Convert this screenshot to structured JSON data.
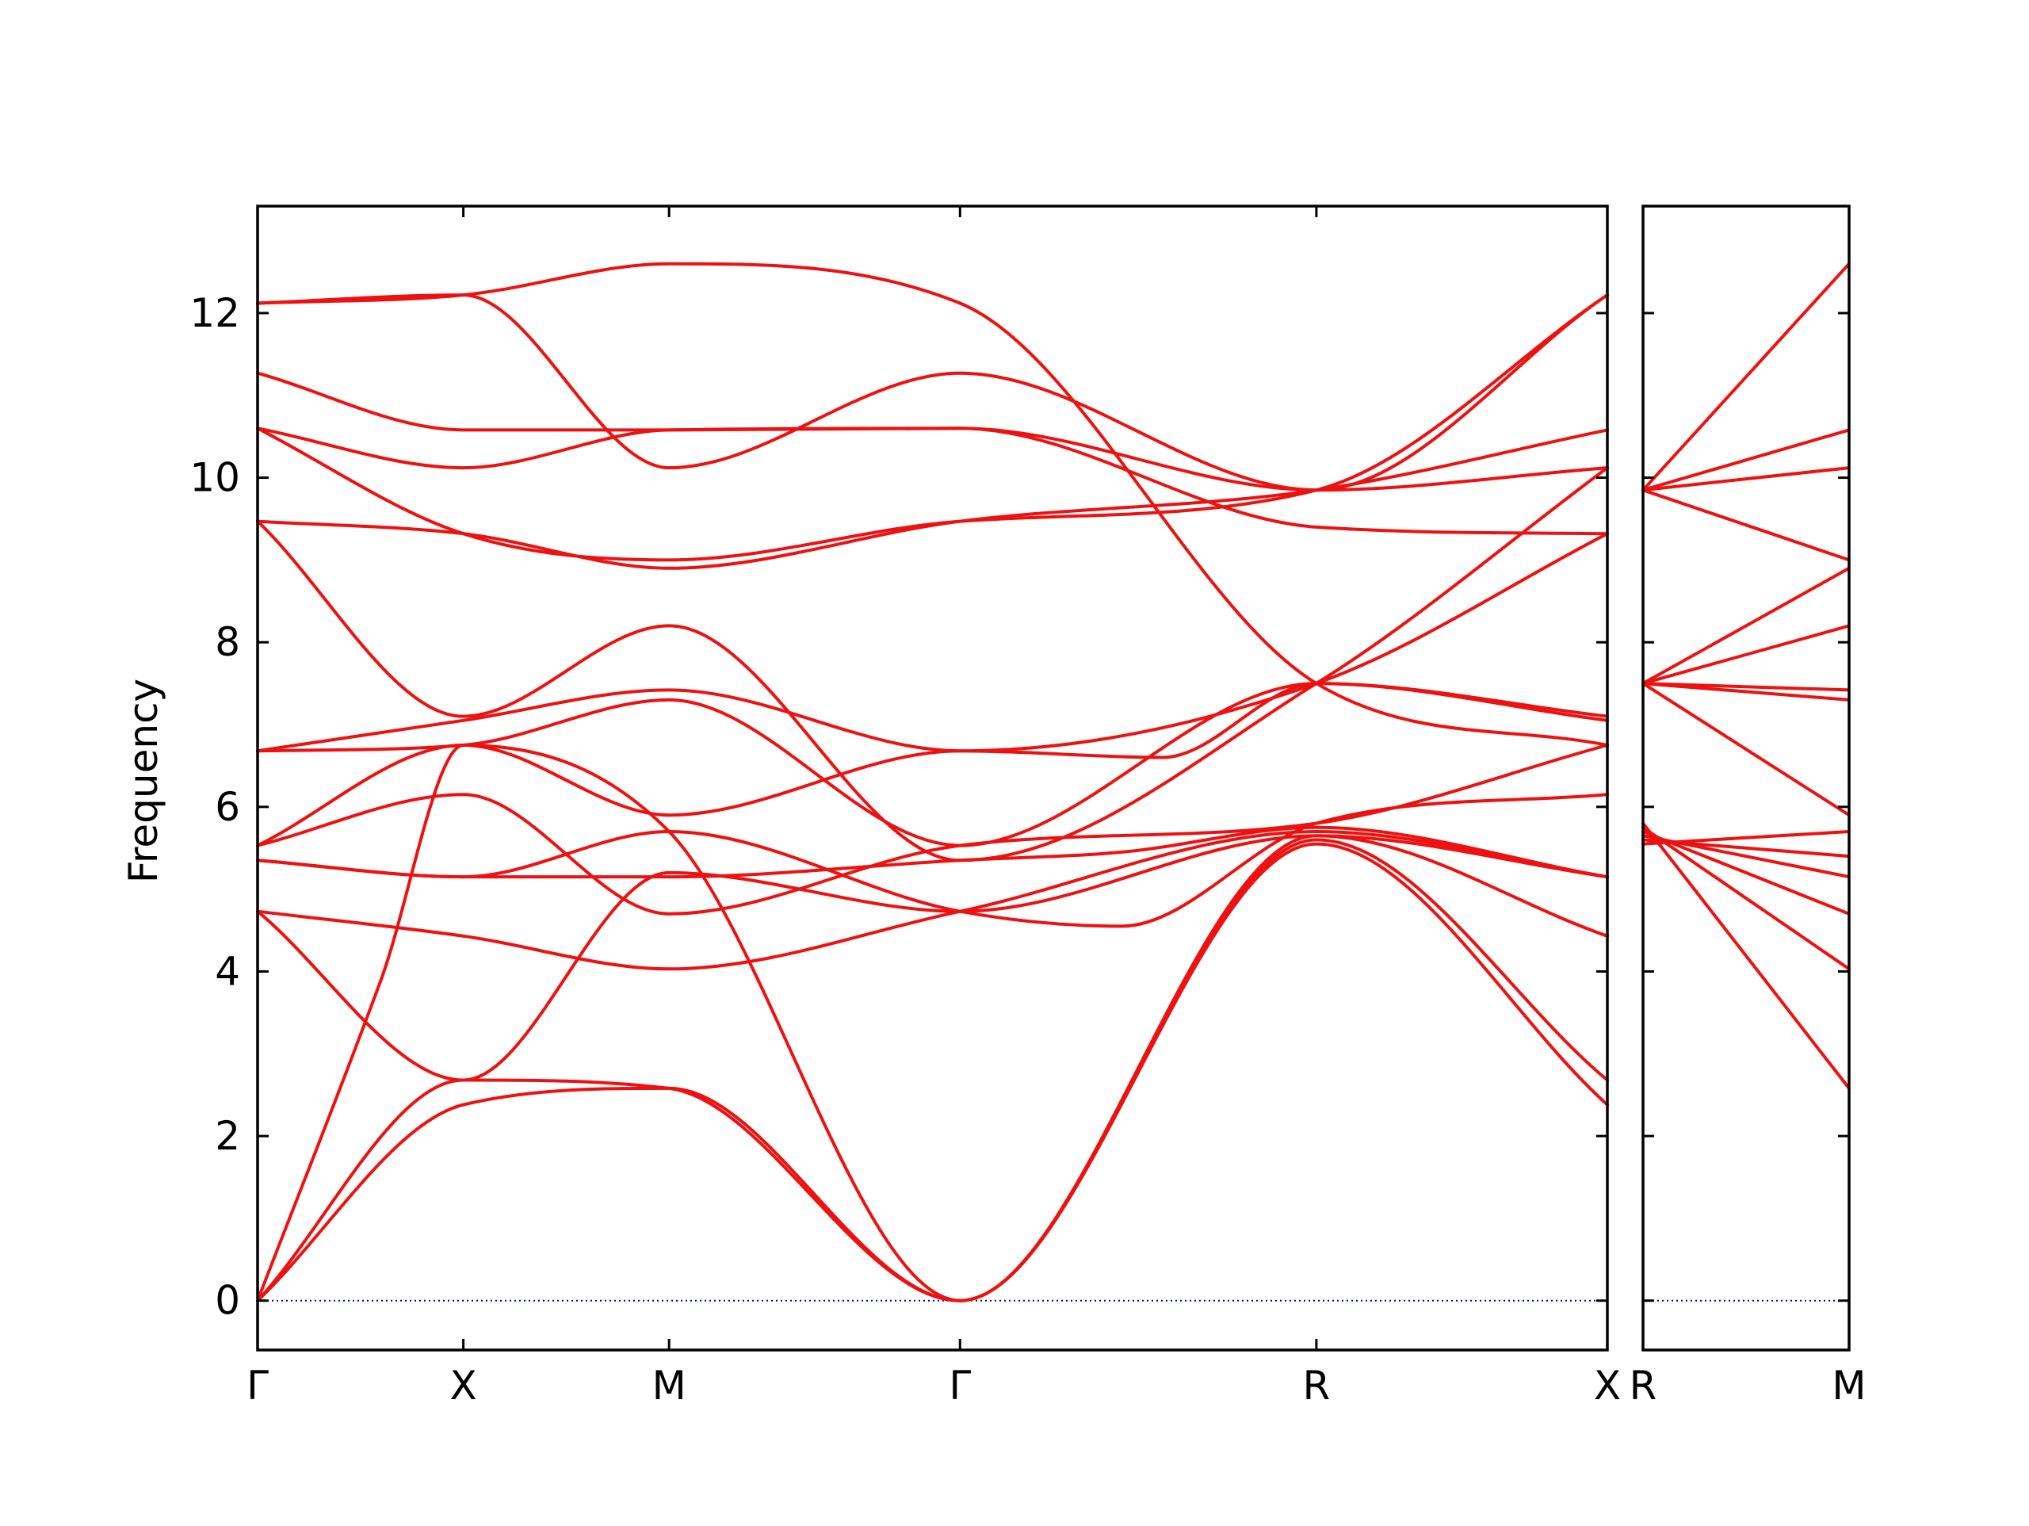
{
  "chart_data": {
    "type": "line",
    "ylabel": "Frequency",
    "ylim": [
      -0.6,
      13.3
    ],
    "y_ticks": [
      "0",
      "2",
      "4",
      "6",
      "8",
      "10",
      "12"
    ],
    "colors": {
      "bands": "#ee1111",
      "zero_line": "#0000aa",
      "axes": "#000000"
    },
    "panels": [
      {
        "x_labels": [
          "Γ",
          "X",
          "M",
          "Γ",
          "R",
          "X"
        ],
        "x_positions": [
          0,
          0.5,
          1.0,
          1.7071,
          2.5731,
          3.2802
        ],
        "series": [
          {
            "x": [
              0,
              0.5,
              1.0,
              1.7071,
              2.5731,
              3.2802
            ],
            "y": [
              0,
              2.38,
              2.58,
              0,
              5.55,
              2.38
            ]
          },
          {
            "x": [
              0,
              0.5,
              1.0,
              1.7071,
              2.5731,
              3.2802
            ],
            "y": [
              0,
              2.68,
              2.58,
              0,
              5.6,
              2.68
            ]
          },
          {
            "x": [
              0,
              0.3,
              0.5,
              1.0,
              1.7071,
              2.5731,
              3.2802
            ],
            "y": [
              0,
              3.9,
              6.75,
              5.7,
              0,
              5.65,
              4.43
            ]
          },
          {
            "x": [
              0,
              0.5,
              1.0,
              1.7071,
              2.5731,
              3.2802
            ],
            "y": [
              4.73,
              2.68,
              5.2,
              4.73,
              5.65,
              5.15
            ]
          },
          {
            "x": [
              0,
              0.5,
              1.0,
              1.7071,
              2.5731,
              3.2802
            ],
            "y": [
              4.73,
              4.43,
              4.03,
              4.73,
              5.7,
              5.15
            ]
          },
          {
            "x": [
              0,
              0.5,
              1.0,
              1.7071,
              2.1,
              2.5731,
              3.2802
            ],
            "y": [
              5.35,
              5.15,
              5.15,
              5.35,
              5.45,
              5.75,
              5.15
            ]
          },
          {
            "x": [
              0,
              0.5,
              1.0,
              1.7071,
              2.1,
              2.5731,
              3.2802
            ],
            "y": [
              5.35,
              5.15,
              5.7,
              4.73,
              4.55,
              5.8,
              6.15
            ]
          },
          {
            "x": [
              0,
              0.5,
              1.0,
              1.7071,
              2.5731,
              3.2802
            ],
            "y": [
              5.53,
              6.15,
              4.7,
              5.53,
              5.8,
              6.75
            ]
          },
          {
            "x": [
              0,
              0.5,
              1.0,
              1.7071,
              2.2,
              2.5731,
              3.2802
            ],
            "y": [
              5.53,
              6.75,
              5.9,
              6.68,
              6.6,
              7.5,
              7.05
            ]
          },
          {
            "x": [
              0,
              0.5,
              1.0,
              1.7071,
              2.5731,
              3.2802
            ],
            "y": [
              6.68,
              6.75,
              7.3,
              5.53,
              7.5,
              7.1
            ]
          },
          {
            "x": [
              0,
              0.5,
              1.0,
              1.7071,
              2.5731,
              3.2802
            ],
            "y": [
              6.68,
              7.05,
              7.42,
              6.68,
              7.5,
              9.32
            ]
          },
          {
            "x": [
              0,
              0.5,
              1.0,
              1.7071,
              2.5731,
              3.2802
            ],
            "y": [
              9.47,
              7.1,
              8.2,
              5.35,
              7.5,
              10.12
            ]
          },
          {
            "x": [
              0,
              0.5,
              1.0,
              1.7071,
              2.5731,
              3.2802
            ],
            "y": [
              9.47,
              9.32,
              8.9,
              9.47,
              9.85,
              10.58
            ]
          },
          {
            "x": [
              0,
              0.5,
              1.0,
              1.7071,
              2.5731,
              3.2802
            ],
            "y": [
              10.6,
              9.32,
              9.0,
              9.47,
              9.85,
              12.22
            ]
          },
          {
            "x": [
              0,
              0.5,
              1.0,
              1.7071,
              2.5731,
              3.2802
            ],
            "y": [
              10.6,
              10.12,
              10.58,
              10.6,
              9.85,
              12.22
            ]
          },
          {
            "x": [
              0,
              0.5,
              1.0,
              1.7071,
              2.5731,
              3.2802
            ],
            "y": [
              11.27,
              10.58,
              10.58,
              10.6,
              9.4,
              9.32
            ]
          },
          {
            "x": [
              0,
              0.5,
              1.0,
              1.7071,
              2.5731,
              3.2802
            ],
            "y": [
              12.12,
              12.22,
              10.12,
              11.27,
              9.85,
              10.12
            ]
          },
          {
            "x": [
              0,
              0.5,
              1.0,
              1.7071,
              2.5731,
              3.2802
            ],
            "y": [
              12.12,
              12.22,
              12.6,
              12.12,
              7.5,
              6.75
            ]
          }
        ]
      },
      {
        "x_labels": [
          "R",
          "M"
        ],
        "x_positions": [
          0,
          0.7071
        ],
        "series": [
          {
            "x": [
              0,
              0.7071
            ],
            "y": [
              9.85,
              12.6
            ]
          },
          {
            "x": [
              0,
              0.7071
            ],
            "y": [
              9.85,
              10.58
            ]
          },
          {
            "x": [
              0,
              0.7071
            ],
            "y": [
              9.85,
              10.12
            ]
          },
          {
            "x": [
              0,
              0.7071
            ],
            "y": [
              9.85,
              9.0
            ]
          },
          {
            "x": [
              0,
              0.7071
            ],
            "y": [
              7.5,
              8.9
            ]
          },
          {
            "x": [
              0,
              0.7071
            ],
            "y": [
              7.5,
              8.2
            ]
          },
          {
            "x": [
              0,
              0.7071
            ],
            "y": [
              7.5,
              7.42
            ]
          },
          {
            "x": [
              0,
              0.7071
            ],
            "y": [
              7.5,
              7.3
            ]
          },
          {
            "x": [
              0,
              0.7071
            ],
            "y": [
              7.5,
              5.9
            ]
          },
          {
            "x": [
              0,
              0.7071
            ],
            "y": [
              5.55,
              5.7
            ]
          },
          {
            "x": [
              0,
              0.7071
            ],
            "y": [
              5.6,
              5.4
            ]
          },
          {
            "x": [
              0,
              0.7071
            ],
            "y": [
              5.65,
              5.15
            ]
          },
          {
            "x": [
              0,
              0.7071
            ],
            "y": [
              5.7,
              4.7
            ]
          },
          {
            "x": [
              0,
              0.7071
            ],
            "y": [
              5.75,
              4.03
            ]
          },
          {
            "x": [
              0,
              0.7071
            ],
            "y": [
              5.8,
              2.58
            ]
          }
        ]
      }
    ]
  }
}
